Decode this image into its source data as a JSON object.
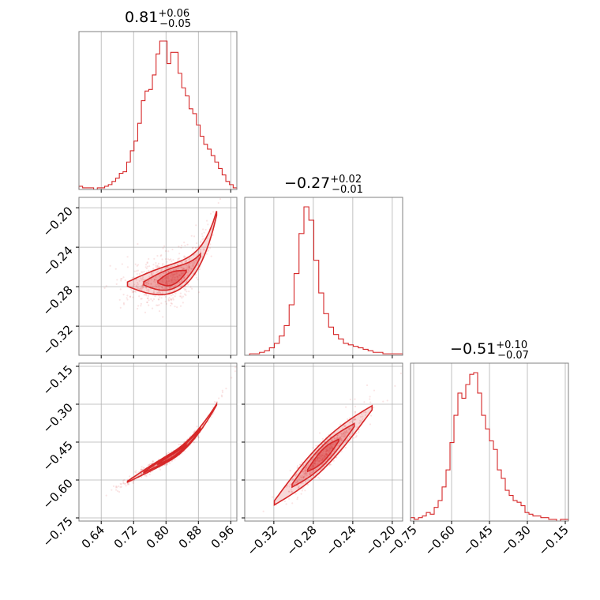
{
  "chart_data": {
    "type": "corner",
    "color": "#d62728",
    "grid": true,
    "parameters": [
      {
        "title_main": "0.81",
        "title_plus": "+0.06",
        "title_minus": "−0.05",
        "range": [
          0.585,
          0.975
        ],
        "ticks": [
          {
            "value": 0.64,
            "label": "0.64"
          },
          {
            "value": 0.72,
            "label": "0.72"
          },
          {
            "value": 0.8,
            "label": "0.80"
          },
          {
            "value": 0.88,
            "label": "0.88"
          },
          {
            "value": 0.96,
            "label": "0.96"
          }
        ],
        "hist": [
          2,
          1,
          1,
          1,
          0,
          1,
          1,
          2,
          3,
          5,
          7,
          10,
          11,
          17,
          24,
          30,
          41,
          55,
          61,
          62,
          71,
          84,
          92,
          92,
          78,
          85,
          85,
          72,
          63,
          58,
          50,
          47,
          40,
          33,
          28,
          25,
          21,
          17,
          13,
          9,
          5,
          3,
          1
        ]
      },
      {
        "title_main": "−0.27",
        "title_plus": "+0.02",
        "title_minus": "−0.01",
        "range": [
          -0.3495,
          -0.1895
        ],
        "ticks": [
          {
            "value": -0.32,
            "label": "−0.32"
          },
          {
            "value": -0.28,
            "label": "−0.28"
          },
          {
            "value": -0.24,
            "label": "−0.24"
          },
          {
            "value": -0.2,
            "label": "−0.20"
          }
        ],
        "hist": [
          0,
          1,
          1,
          2,
          3,
          5,
          8,
          13,
          20,
          34,
          55,
          82,
          100,
          91,
          64,
          42,
          28,
          19,
          14,
          11,
          8,
          7,
          6,
          5,
          4,
          3,
          2,
          2,
          1,
          1,
          1,
          1
        ]
      },
      {
        "title_main": "−0.51",
        "title_plus": "+0.10",
        "title_minus": "−0.07",
        "range": [
          -0.7625,
          -0.1375
        ],
        "ticks": [
          {
            "value": -0.75,
            "label": "−0.75"
          },
          {
            "value": -0.6,
            "label": "−0.60"
          },
          {
            "value": -0.45,
            "label": "−0.45"
          },
          {
            "value": -0.3,
            "label": "−0.30"
          },
          {
            "value": -0.15,
            "label": "−0.15"
          }
        ],
        "hist": [
          2,
          1,
          2,
          3,
          5,
          4,
          8,
          12,
          20,
          30,
          46,
          62,
          75,
          72,
          80,
          86,
          87,
          75,
          62,
          54,
          47,
          42,
          30,
          25,
          18,
          15,
          12,
          11,
          9,
          5,
          4,
          3,
          3,
          2,
          2,
          1,
          1,
          0,
          1,
          1
        ]
      }
    ]
  }
}
